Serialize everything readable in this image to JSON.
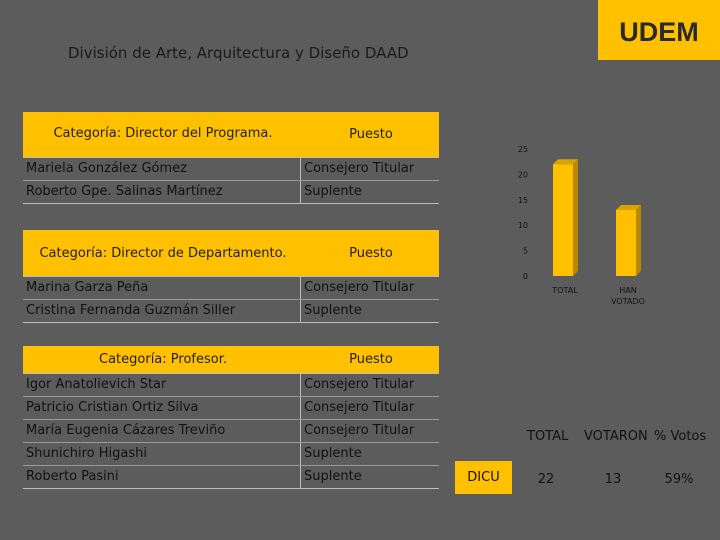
{
  "header": {
    "logo_text": "UDEM",
    "title": "División de Arte, Arquitectura y Diseño DAAD",
    "logo_color": "#ffc000"
  },
  "tables": [
    {
      "category": "Categoría: Director del Programa.",
      "puesto_label": "Puesto",
      "rows": [
        {
          "name": "Mariela González Gómez",
          "puesto": "Consejero Titular"
        },
        {
          "name": "Roberto Gpe. Salinas Martínez",
          "puesto": "Suplente"
        }
      ]
    },
    {
      "category": "Categoría: Director de Departamento.",
      "puesto_label": "Puesto",
      "rows": [
        {
          "name": "Marina Garza Peña",
          "puesto": "Consejero Titular"
        },
        {
          "name": "Cristina Fernanda Guzmán Siller",
          "puesto": "Suplente"
        }
      ]
    },
    {
      "category": "Categoría: Profesor.",
      "puesto_label": "Puesto",
      "rows": [
        {
          "name": "Igor Anatolievich Star",
          "puesto": "Consejero Titular"
        },
        {
          "name": "Patricio Cristian Ortiz Silva",
          "puesto": "Consejero Titular"
        },
        {
          "name": "María Eugenia Cázares Treviño",
          "puesto": "Consejero Titular"
        },
        {
          "name": "Shunichiro Higashi",
          "puesto": "Suplente"
        },
        {
          "name": "Roberto Pasini",
          "puesto": "Suplente"
        }
      ]
    }
  ],
  "chart_data": {
    "type": "bar",
    "categories": [
      "TOTAL",
      "HAN VOTADO"
    ],
    "values": [
      22,
      13
    ],
    "ylim": [
      0,
      25
    ],
    "yticks": [
      0,
      5,
      10,
      15,
      20,
      25
    ],
    "bar_color": "#ffc000",
    "grid": false
  },
  "summary": {
    "headers": {
      "total": "TOTAL",
      "votaron": "VOTARON",
      "pct": "% Votos"
    },
    "row_label": "DICU",
    "total": "22",
    "votaron": "13",
    "pct": "59%"
  }
}
